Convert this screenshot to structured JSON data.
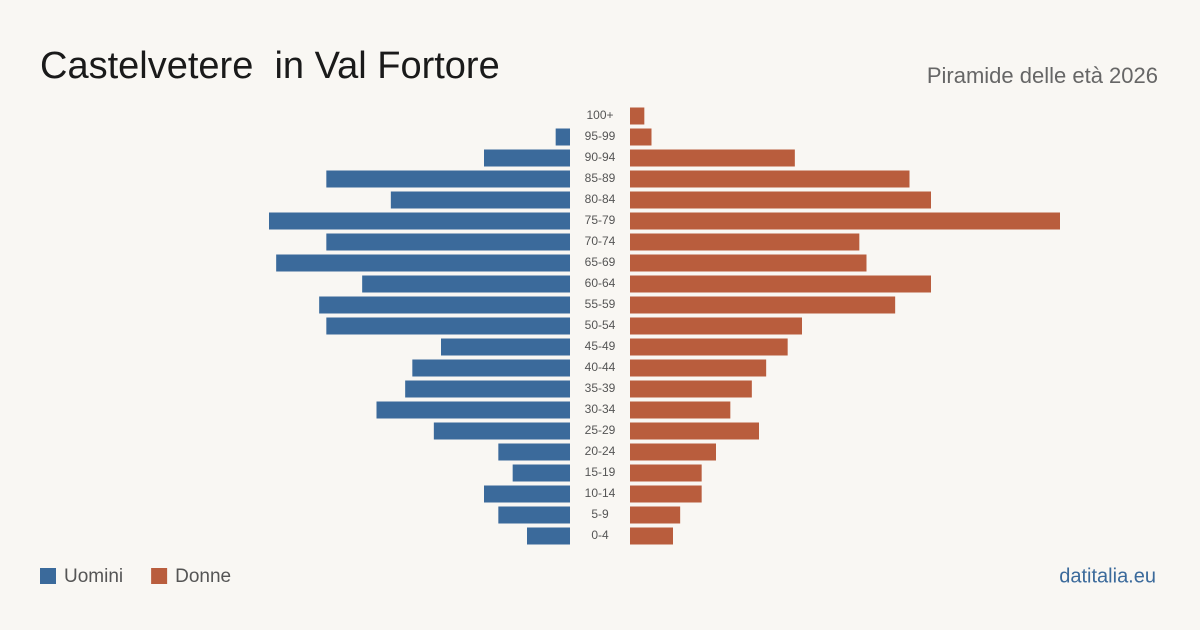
{
  "chart_data": {
    "type": "pyramid",
    "title": "Castelvetere  in Val Fortore",
    "subtitle": "Piramide delle età 2026",
    "source": "datitalia.eu",
    "categories": [
      "100+",
      "95-99",
      "90-94",
      "85-89",
      "80-84",
      "75-79",
      "70-74",
      "65-69",
      "60-64",
      "55-59",
      "50-54",
      "45-49",
      "40-44",
      "35-39",
      "30-34",
      "25-29",
      "20-24",
      "15-19",
      "10-14",
      "5-9",
      "0-4"
    ],
    "series": [
      {
        "name": "Uomini",
        "color": "#3b6a9b",
        "values": [
          0,
          2,
          12,
          34,
          25,
          42,
          34,
          41,
          29,
          35,
          34,
          18,
          22,
          23,
          27,
          19,
          10,
          8,
          12,
          10,
          6
        ]
      },
      {
        "name": "Donne",
        "color": "#b95d3d",
        "values": [
          2,
          3,
          23,
          39,
          42,
          60,
          32,
          33,
          42,
          37,
          24,
          22,
          19,
          17,
          14,
          18,
          12,
          10,
          10,
          7,
          6
        ]
      }
    ]
  }
}
